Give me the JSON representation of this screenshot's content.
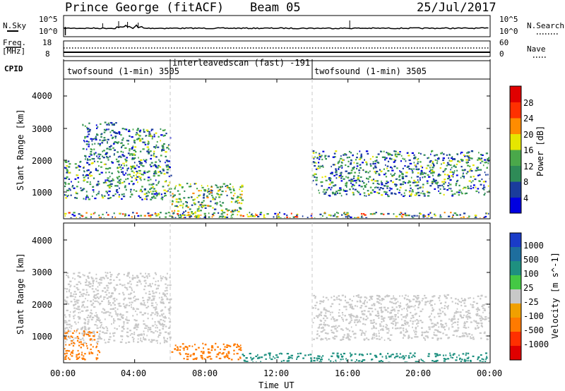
{
  "header": {
    "station": "Prince George (fitACF)",
    "beam": "Beam 05",
    "date": "25/Jul/2017"
  },
  "noise_panel": {
    "left_label": "N.Sky",
    "right_label": "N.Search",
    "left_ticks": [
      "10^5",
      "10^0"
    ],
    "right_ticks": [
      "10^5",
      "10^0"
    ]
  },
  "freq_panel": {
    "label_line1": "Freq.",
    "label_line2": "[MHz]",
    "left_ticks": [
      "18",
      "8"
    ],
    "right_label": "Nave",
    "right_ticks": [
      "60",
      "0"
    ]
  },
  "cpid": {
    "label": "CPID",
    "segments": [
      {
        "name": "twofsound (1-min) 3505",
        "start_hour": 0,
        "end_hour": 6
      },
      {
        "name": "interleavedscan (fast) -191",
        "start_hour": 6,
        "end_hour": 14
      },
      {
        "name": "twofsound (1-min) 3505",
        "start_hour": 14,
        "end_hour": 24
      }
    ]
  },
  "power_panel": {
    "ylabel": "Slant Range [km]",
    "yticks": [
      "4000",
      "3000",
      "2000",
      "1000"
    ],
    "colorbar_label": "Power [dB]",
    "colorbar_ticks": [
      "28",
      "24",
      "20",
      "16",
      "12",
      "8",
      "4"
    ],
    "colors": [
      "#0000e0",
      "#1a3c9c",
      "#2e8b57",
      "#4aa84a",
      "#e6e600",
      "#ff8c00",
      "#ff3000",
      "#e00000"
    ]
  },
  "velocity_panel": {
    "ylabel": "Slant Range [km]",
    "yticks": [
      "4000",
      "3000",
      "2000",
      "1000"
    ],
    "colorbar_label": "Velocity [m s^-1]",
    "colorbar_ticks": [
      "1000",
      "500",
      "100",
      "25",
      "-25",
      "-100",
      "-500",
      "-1000"
    ],
    "colors": [
      "#1a3cc8",
      "#1e6e9e",
      "#1e9080",
      "#44c844",
      "#c8c8c8",
      "#f0a000",
      "#ff7a00",
      "#ff3000",
      "#e00000"
    ]
  },
  "x_axis": {
    "label": "Time UT",
    "ticks": [
      "00:00",
      "04:00",
      "08:00",
      "12:00",
      "16:00",
      "20:00",
      "00:00"
    ]
  },
  "chart_data": {
    "type": "heatmap",
    "x_range_hours": [
      0,
      24
    ],
    "y_range_km": [
      180,
      4500
    ],
    "dashed_boundaries_hours": [
      6,
      14
    ],
    "noise": {
      "n_sky": "baseline ~10^2 with spikes near 03:00-04:30 and 16:00",
      "n_search": "dotted, near baseline"
    },
    "frequency_mhz": {
      "early": 10,
      "late": 10
    },
    "power_regions": [
      {
        "time": [
          0,
          6
        ],
        "range_km": [
          800,
          2000
        ],
        "power_db": [
          4,
          20
        ]
      },
      {
        "time": [
          1,
          3
        ],
        "range_km": [
          2000,
          3200
        ],
        "power_db": [
          4,
          16
        ]
      },
      {
        "time": [
          3,
          6
        ],
        "range_km": [
          2000,
          3000
        ],
        "power_db": [
          4,
          20
        ]
      },
      {
        "time": [
          6,
          10
        ],
        "range_km": [
          200,
          1300
        ],
        "power_db": [
          8,
          24
        ]
      },
      {
        "time": [
          14,
          24
        ],
        "range_km": [
          900,
          2300
        ],
        "power_db": [
          4,
          20
        ]
      },
      {
        "time": [
          0,
          24
        ],
        "range_km": [
          200,
          400
        ],
        "power_db": [
          4,
          28
        ]
      }
    ],
    "velocity_regions": [
      {
        "time": [
          0,
          6
        ],
        "range_km": [
          800,
          3000
        ],
        "velocity_ms": [
          -25,
          25
        ]
      },
      {
        "time": [
          0,
          2
        ],
        "range_km": [
          300,
          1200
        ],
        "velocity_ms": [
          -500,
          -100
        ]
      },
      {
        "time": [
          6,
          10
        ],
        "range_km": [
          300,
          800
        ],
        "velocity_ms": [
          -500,
          -100
        ]
      },
      {
        "time": [
          14,
          24
        ],
        "range_km": [
          900,
          2300
        ],
        "velocity_ms": [
          -25,
          25
        ]
      },
      {
        "time": [
          10,
          24
        ],
        "range_km": [
          200,
          500
        ],
        "velocity_ms": [
          100,
          500
        ]
      }
    ]
  }
}
